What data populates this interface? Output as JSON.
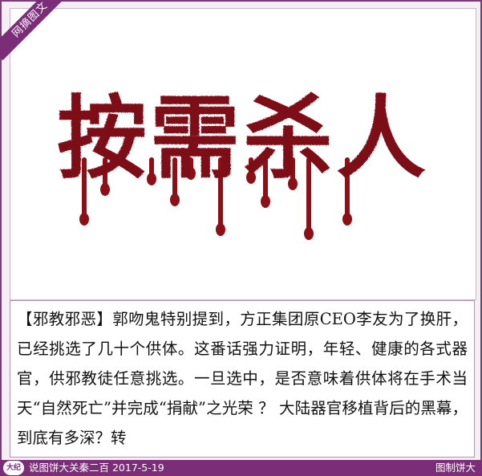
{
  "badge": {
    "label": "网摘图文"
  },
  "headline": {
    "text": "按需杀人",
    "color": "#7d0f14",
    "drip_color": "#8e1017"
  },
  "article": {
    "text": "【邪教邪恶】郭吻鬼特别提到，方正集团原CEO李友为了换肝，已经挑选了几十个供体。这番话强力证明，年轻、健康的各式器官，供邪教徒任意挑选。一旦选中，是否意味着供体将在手术当天“自然死亡”并完成“捐献”之光荣 ？ 大陆器官移植背后的黑幕，到底有多深？转"
  },
  "footer": {
    "logo_text": "大纪",
    "credit": "说图饼大关秦二百  2017-5-19",
    "right_label": "图制饼大"
  },
  "colors": {
    "frame": "#7b3a78",
    "footer_bg": "#7b2d78",
    "background": "#f6eef5"
  }
}
